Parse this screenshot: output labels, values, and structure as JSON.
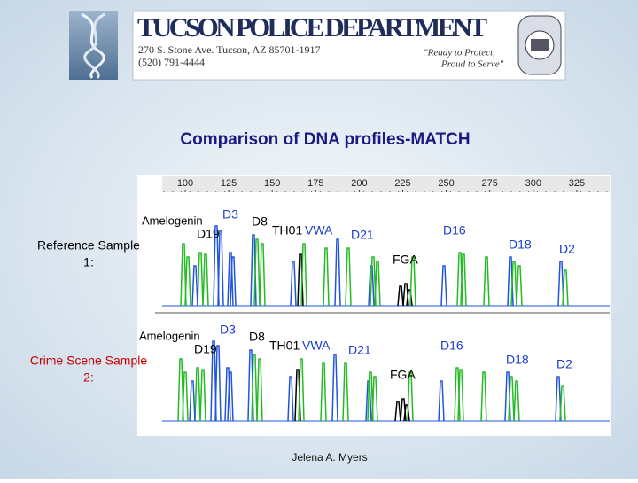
{
  "header": {
    "title": "TUCSON POLICE DEPARTMENT",
    "address": "270 S. Stone Ave.   Tucson, AZ  85701-1917",
    "phone": "(520) 791-4444",
    "motto": [
      "\"Ready to Protect,",
      "Proud to Serve\""
    ]
  },
  "slide": {
    "title": "Comparison of DNA profiles-MATCH",
    "author": "Jelena A. Myers"
  },
  "electropherogram": {
    "scale": [
      100,
      125,
      150,
      175,
      200,
      225,
      250,
      275,
      300,
      325
    ],
    "panels": [
      {
        "label": [
          "Reference Sample",
          "1:"
        ],
        "loci": [
          "Amelogenin",
          "D3",
          "D19",
          "D8",
          "TH01",
          "VWA",
          "D21",
          "FGA",
          "D16",
          "D18",
          "D2"
        ]
      },
      {
        "label": [
          "Crime Scene Sample",
          "2:"
        ],
        "loci": [
          "Amelogenin",
          "D3",
          "D19",
          "D8",
          "TH01",
          "VWA",
          "D21",
          "FGA",
          "D16",
          "D18",
          "D2"
        ]
      }
    ]
  }
}
